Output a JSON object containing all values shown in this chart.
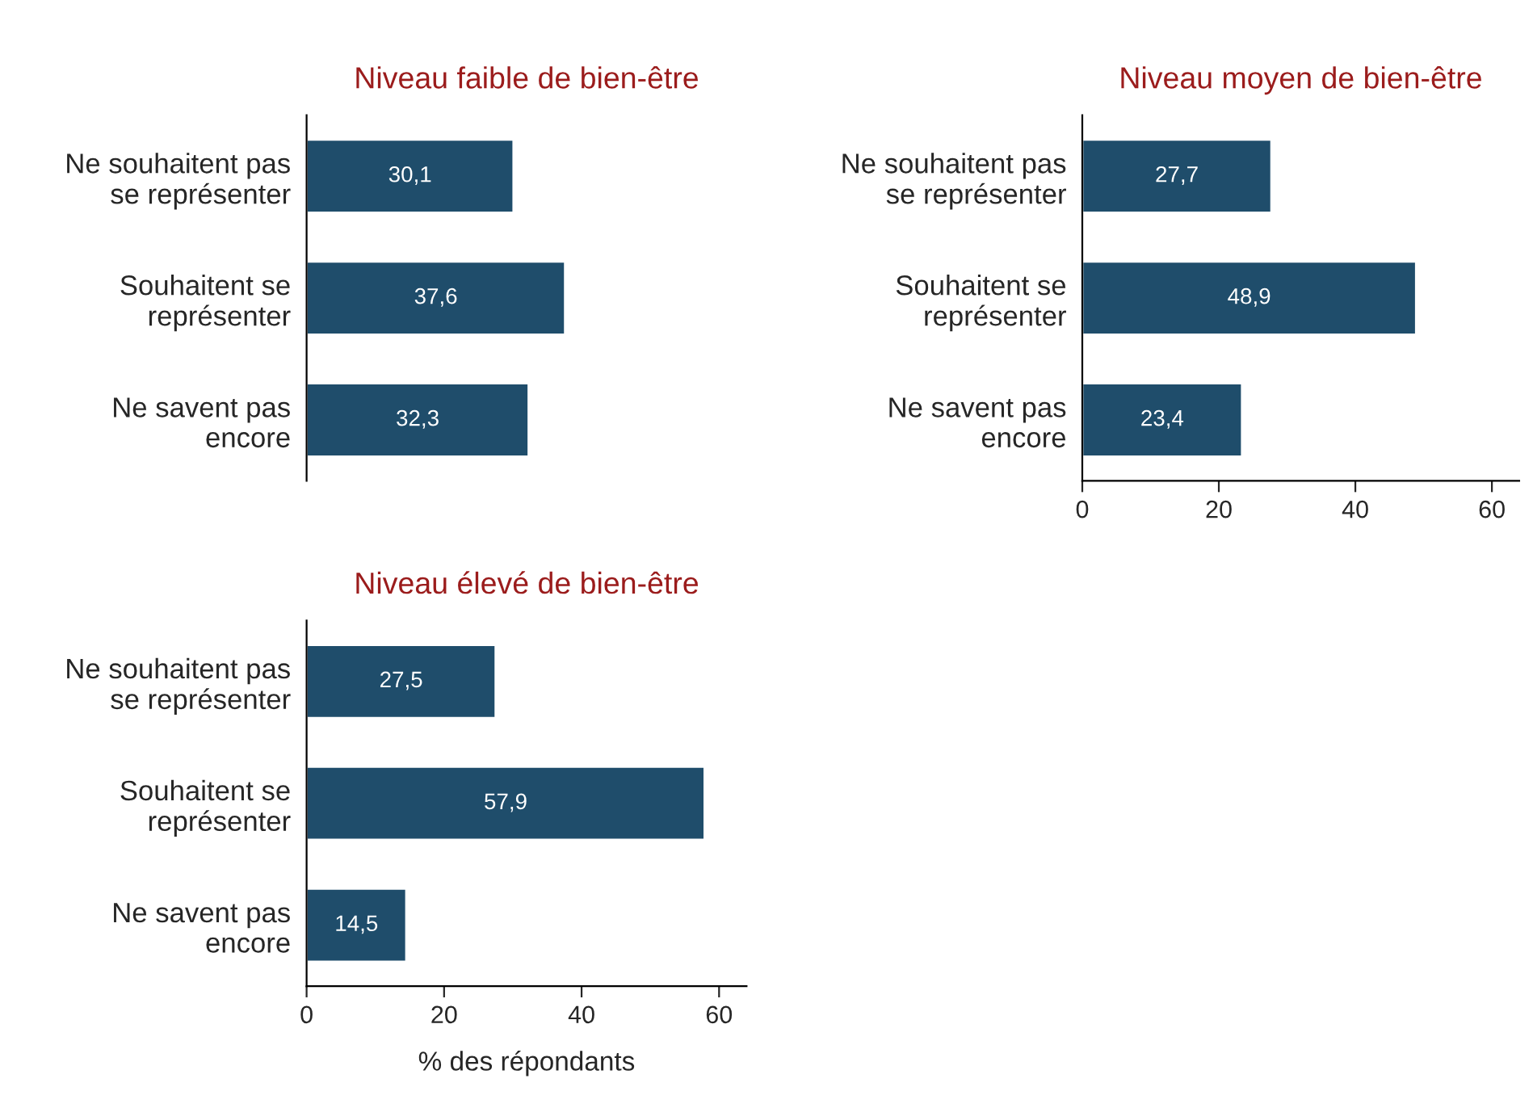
{
  "chart_data": [
    {
      "type": "bar",
      "orientation": "horizontal",
      "title": "Niveau faible de bien-être",
      "categories": [
        "Ne souhaitent pas\nse représenter",
        "Souhaitent se\nreprésenter",
        "Ne savent pas\nencore"
      ],
      "values": [
        30.1,
        37.6,
        32.3
      ],
      "value_labels": [
        "30,1",
        "37,6",
        "32,3"
      ],
      "color": "#1f4d6b",
      "tick_labels": "y",
      "grid": false,
      "legend": false
    },
    {
      "type": "bar",
      "orientation": "horizontal",
      "title": "Niveau moyen de bien-être",
      "categories": [
        "Ne souhaitent pas\nse représenter",
        "Souhaitent se\nreprésenter",
        "Ne savent pas\nencore"
      ],
      "values": [
        27.7,
        48.9,
        23.4
      ],
      "value_labels": [
        "27,7",
        "48,9",
        "23,4"
      ],
      "color": "#1f4d6b",
      "xlim": [
        0,
        64
      ],
      "xticks": [
        0,
        20,
        40,
        60
      ],
      "grid": false,
      "legend": false
    },
    {
      "type": "bar",
      "orientation": "horizontal",
      "title": "Niveau élevé de bien-être",
      "xlabel": "% des répondants",
      "categories": [
        "Ne souhaitent pas\nse représenter",
        "Souhaitent se\nreprésenter",
        "Ne savent pas\nencore"
      ],
      "values": [
        27.5,
        57.9,
        14.5
      ],
      "value_labels": [
        "27,5",
        "57,9",
        "14,5"
      ],
      "color": "#1f4d6b",
      "xlim": [
        0,
        64
      ],
      "xticks": [
        0,
        20,
        40,
        60
      ],
      "grid": false,
      "legend": false
    }
  ]
}
